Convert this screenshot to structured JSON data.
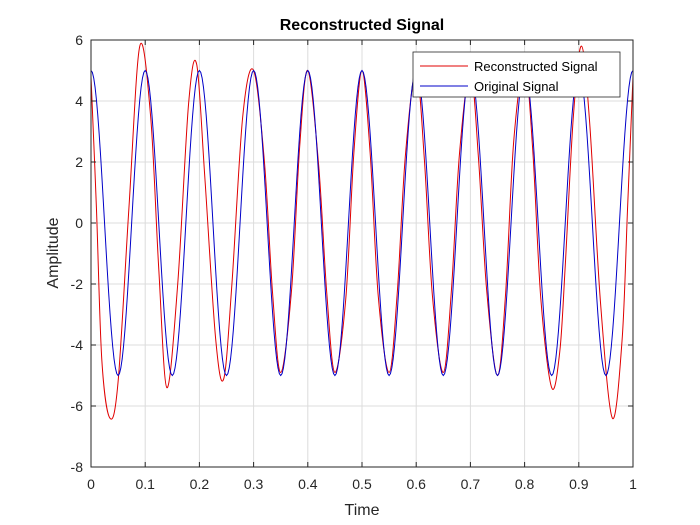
{
  "chart_data": {
    "type": "line",
    "title": "Reconstructed Signal",
    "xlabel": "Time",
    "ylabel": "Amplitude",
    "xlim": [
      0,
      1
    ],
    "ylim": [
      -8,
      6
    ],
    "xticks": [
      0,
      0.1,
      0.2,
      0.3,
      0.4,
      0.5,
      0.6,
      0.7,
      0.8,
      0.9,
      1
    ],
    "xtick_labels": [
      "0",
      "0.1",
      "0.2",
      "0.3",
      "0.4",
      "0.5",
      "0.6",
      "0.7",
      "0.8",
      "0.9",
      "1"
    ],
    "yticks": [
      -8,
      -6,
      -4,
      -2,
      0,
      2,
      4,
      6
    ],
    "ytick_labels": [
      "-8",
      "-6",
      "-4",
      "-2",
      "0",
      "2",
      "4",
      "6"
    ],
    "grid": true,
    "legend_position": "top-right",
    "series": [
      {
        "name": "Reconstructed Signal",
        "color": "#e00000",
        "x": [
          0,
          0.01,
          0.02,
          0.035,
          0.05,
          0.07,
          0.09,
          0.11,
          0.125,
          0.14,
          0.16,
          0.18,
          0.195,
          0.21,
          0.23,
          0.245,
          0.26,
          0.28,
          0.3,
          0.32,
          0.335,
          0.35,
          0.37,
          0.385,
          0.4,
          0.42,
          0.435,
          0.45,
          0.47,
          0.485,
          0.5,
          0.515,
          0.53,
          0.55,
          0.565,
          0.58,
          0.6,
          0.615,
          0.63,
          0.65,
          0.665,
          0.68,
          0.7,
          0.715,
          0.73,
          0.75,
          0.765,
          0.78,
          0.8,
          0.815,
          0.83,
          0.85,
          0.865,
          0.875,
          0.89,
          0.905,
          0.92,
          0.94,
          0.962,
          0.98,
          0.99,
          1
        ],
        "y": [
          4.8,
          0.5,
          -4.5,
          -6.4,
          -5.2,
          0.5,
          5.8,
          3.5,
          -1.5,
          -5.4,
          -2.0,
          3.9,
          5.2,
          1.5,
          -3.8,
          -5.1,
          -2.0,
          3.5,
          5.0,
          2.0,
          -2.3,
          -4.9,
          -2.2,
          2.5,
          5.0,
          1.9,
          -2.3,
          -4.9,
          -2.5,
          2.3,
          5.0,
          2.3,
          -2.4,
          -4.9,
          -2.3,
          2.2,
          5.0,
          2.1,
          -2.4,
          -4.9,
          -2.2,
          2.3,
          5.0,
          2.1,
          -2.2,
          -5.0,
          -2.3,
          2.7,
          5.2,
          2.4,
          -2.5,
          -5.4,
          -4.2,
          -1.4,
          3.5,
          5.8,
          3.3,
          -2.6,
          -6.4,
          -3.8,
          0.5,
          4.8
        ]
      },
      {
        "name": "Original Signal",
        "color": "#0000c8",
        "x": [],
        "y": [],
        "function": "5*cos(2*pi*10*t)"
      }
    ]
  }
}
